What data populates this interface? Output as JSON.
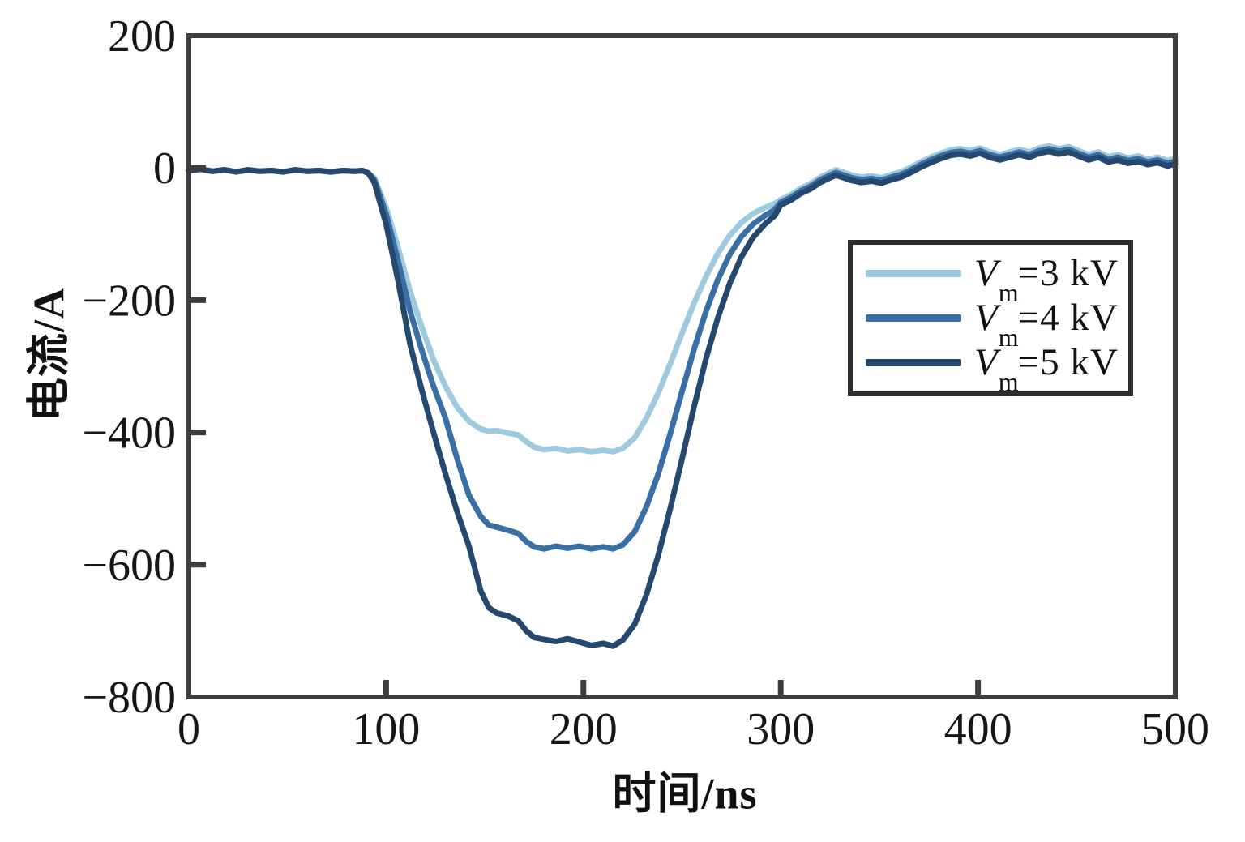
{
  "page": {
    "background": "#ffffff"
  },
  "chart_data": {
    "type": "line",
    "title": "",
    "xlabel": "时间/ns",
    "ylabel": "电流/A",
    "xlim": [
      0,
      500
    ],
    "ylim": [
      -800,
      200
    ],
    "grid": false,
    "legend_position": "right-middle-inside",
    "axis_color": "#3d3d3d",
    "tick_label_color": "#161616",
    "x_ticks": [
      {
        "v": 0,
        "label": "0"
      },
      {
        "v": 100,
        "label": "100"
      },
      {
        "v": 200,
        "label": "200"
      },
      {
        "v": 300,
        "label": "300"
      },
      {
        "v": 400,
        "label": "400"
      },
      {
        "v": 500,
        "label": "500"
      }
    ],
    "y_ticks": [
      {
        "v": 200,
        "label": "200"
      },
      {
        "v": 0,
        "label": "0"
      },
      {
        "v": -200,
        "label": "−200"
      },
      {
        "v": -400,
        "label": "−400"
      },
      {
        "v": -600,
        "label": "−600"
      },
      {
        "v": -800,
        "label": "−800"
      }
    ],
    "series": [
      {
        "name": "Vm=3 kV",
        "label_suffix": "=3 kV",
        "color": "#9ecadf",
        "peak_current_A": -430,
        "points": [
          [
            0,
            -4
          ],
          [
            6,
            -2
          ],
          [
            12,
            -5
          ],
          [
            18,
            -3
          ],
          [
            24,
            -6
          ],
          [
            30,
            -3
          ],
          [
            36,
            -5
          ],
          [
            42,
            -4
          ],
          [
            48,
            -6
          ],
          [
            54,
            -3
          ],
          [
            60,
            -5
          ],
          [
            66,
            -4
          ],
          [
            72,
            -6
          ],
          [
            78,
            -4
          ],
          [
            84,
            -5
          ],
          [
            88,
            -4
          ],
          [
            91,
            -8
          ],
          [
            94,
            -15
          ],
          [
            100,
            -60
          ],
          [
            106,
            -120
          ],
          [
            112,
            -185
          ],
          [
            118,
            -240
          ],
          [
            124,
            -290
          ],
          [
            130,
            -330
          ],
          [
            136,
            -362
          ],
          [
            142,
            -383
          ],
          [
            148,
            -395
          ],
          [
            152,
            -398
          ],
          [
            156,
            -397
          ],
          [
            162,
            -401
          ],
          [
            167,
            -404
          ],
          [
            171,
            -414
          ],
          [
            175,
            -422
          ],
          [
            180,
            -426
          ],
          [
            186,
            -424
          ],
          [
            192,
            -428
          ],
          [
            198,
            -426
          ],
          [
            204,
            -429
          ],
          [
            210,
            -427
          ],
          [
            215,
            -429
          ],
          [
            220,
            -424
          ],
          [
            226,
            -408
          ],
          [
            232,
            -378
          ],
          [
            238,
            -340
          ],
          [
            244,
            -296
          ],
          [
            250,
            -250
          ],
          [
            256,
            -205
          ],
          [
            262,
            -165
          ],
          [
            268,
            -130
          ],
          [
            274,
            -103
          ],
          [
            280,
            -83
          ],
          [
            286,
            -69
          ],
          [
            292,
            -60
          ],
          [
            297,
            -54
          ],
          [
            300,
            -48
          ],
          [
            305,
            -41
          ],
          [
            310,
            -31
          ],
          [
            315,
            -24
          ],
          [
            320,
            -14
          ],
          [
            325,
            -7
          ],
          [
            328,
            -3
          ],
          [
            332,
            -7
          ],
          [
            336,
            -11
          ],
          [
            341,
            -14
          ],
          [
            346,
            -12
          ],
          [
            351,
            -15
          ],
          [
            356,
            -10
          ],
          [
            361,
            -6
          ],
          [
            366,
            1
          ],
          [
            371,
            9
          ],
          [
            376,
            16
          ],
          [
            381,
            22
          ],
          [
            386,
            27
          ],
          [
            391,
            29
          ],
          [
            396,
            26
          ],
          [
            401,
            30
          ],
          [
            406,
            24
          ],
          [
            411,
            20
          ],
          [
            416,
            24
          ],
          [
            421,
            28
          ],
          [
            426,
            24
          ],
          [
            431,
            30
          ],
          [
            436,
            33
          ],
          [
            441,
            29
          ],
          [
            446,
            32
          ],
          [
            451,
            26
          ],
          [
            456,
            20
          ],
          [
            461,
            24
          ],
          [
            466,
            17
          ],
          [
            471,
            20
          ],
          [
            476,
            15
          ],
          [
            481,
            18
          ],
          [
            486,
            13
          ],
          [
            491,
            16
          ],
          [
            496,
            11
          ],
          [
            500,
            14
          ]
        ]
      },
      {
        "name": "Vm=4 kV",
        "label_suffix": "=4 kV",
        "color": "#3a6fa5",
        "peak_current_A": -576,
        "points": [
          [
            0,
            -4
          ],
          [
            6,
            -2
          ],
          [
            12,
            -5
          ],
          [
            18,
            -3
          ],
          [
            24,
            -6
          ],
          [
            30,
            -3
          ],
          [
            36,
            -5
          ],
          [
            42,
            -4
          ],
          [
            48,
            -6
          ],
          [
            54,
            -3
          ],
          [
            60,
            -5
          ],
          [
            66,
            -4
          ],
          [
            72,
            -6
          ],
          [
            78,
            -4
          ],
          [
            84,
            -5
          ],
          [
            88,
            -4
          ],
          [
            91,
            -8
          ],
          [
            94,
            -18
          ],
          [
            100,
            -70
          ],
          [
            106,
            -140
          ],
          [
            112,
            -215
          ],
          [
            118,
            -275
          ],
          [
            124,
            -330
          ],
          [
            130,
            -378
          ],
          [
            136,
            -440
          ],
          [
            142,
            -495
          ],
          [
            148,
            -527
          ],
          [
            152,
            -540
          ],
          [
            156,
            -543
          ],
          [
            162,
            -548
          ],
          [
            167,
            -553
          ],
          [
            171,
            -565
          ],
          [
            175,
            -573
          ],
          [
            180,
            -576
          ],
          [
            186,
            -572
          ],
          [
            192,
            -575
          ],
          [
            198,
            -572
          ],
          [
            204,
            -576
          ],
          [
            210,
            -573
          ],
          [
            215,
            -576
          ],
          [
            220,
            -570
          ],
          [
            226,
            -550
          ],
          [
            232,
            -512
          ],
          [
            238,
            -462
          ],
          [
            244,
            -402
          ],
          [
            250,
            -338
          ],
          [
            256,
            -275
          ],
          [
            262,
            -218
          ],
          [
            268,
            -170
          ],
          [
            274,
            -132
          ],
          [
            280,
            -104
          ],
          [
            286,
            -85
          ],
          [
            292,
            -72
          ],
          [
            297,
            -63
          ],
          [
            300,
            -52
          ],
          [
            305,
            -45
          ],
          [
            310,
            -35
          ],
          [
            315,
            -28
          ],
          [
            320,
            -18
          ],
          [
            325,
            -11
          ],
          [
            328,
            -7
          ],
          [
            332,
            -11
          ],
          [
            336,
            -15
          ],
          [
            341,
            -18
          ],
          [
            346,
            -16
          ],
          [
            351,
            -19
          ],
          [
            356,
            -14
          ],
          [
            361,
            -10
          ],
          [
            366,
            -3
          ],
          [
            371,
            5
          ],
          [
            376,
            12
          ],
          [
            381,
            18
          ],
          [
            386,
            23
          ],
          [
            391,
            25
          ],
          [
            396,
            22
          ],
          [
            401,
            26
          ],
          [
            406,
            20
          ],
          [
            411,
            16
          ],
          [
            416,
            20
          ],
          [
            421,
            24
          ],
          [
            426,
            20
          ],
          [
            431,
            26
          ],
          [
            436,
            29
          ],
          [
            441,
            25
          ],
          [
            446,
            28
          ],
          [
            451,
            22
          ],
          [
            456,
            16
          ],
          [
            461,
            20
          ],
          [
            466,
            13
          ],
          [
            471,
            16
          ],
          [
            476,
            11
          ],
          [
            481,
            14
          ],
          [
            486,
            9
          ],
          [
            491,
            12
          ],
          [
            496,
            7
          ],
          [
            500,
            10
          ]
        ]
      },
      {
        "name": "Vm=5 kV",
        "label_suffix": "=5 kV",
        "color": "#25486e",
        "peak_current_A": -723,
        "points": [
          [
            0,
            -4
          ],
          [
            6,
            -2
          ],
          [
            12,
            -5
          ],
          [
            18,
            -3
          ],
          [
            24,
            -6
          ],
          [
            30,
            -3
          ],
          [
            36,
            -5
          ],
          [
            42,
            -4
          ],
          [
            48,
            -6
          ],
          [
            54,
            -3
          ],
          [
            60,
            -5
          ],
          [
            66,
            -4
          ],
          [
            72,
            -6
          ],
          [
            78,
            -4
          ],
          [
            84,
            -5
          ],
          [
            88,
            -4
          ],
          [
            91,
            -8
          ],
          [
            94,
            -22
          ],
          [
            100,
            -85
          ],
          [
            106,
            -170
          ],
          [
            112,
            -265
          ],
          [
            118,
            -335
          ],
          [
            124,
            -400
          ],
          [
            130,
            -462
          ],
          [
            136,
            -520
          ],
          [
            142,
            -572
          ],
          [
            148,
            -640
          ],
          [
            152,
            -665
          ],
          [
            156,
            -673
          ],
          [
            162,
            -678
          ],
          [
            167,
            -685
          ],
          [
            171,
            -700
          ],
          [
            175,
            -710
          ],
          [
            180,
            -713
          ],
          [
            186,
            -716
          ],
          [
            192,
            -712
          ],
          [
            198,
            -717
          ],
          [
            204,
            -722
          ],
          [
            210,
            -719
          ],
          [
            215,
            -723
          ],
          [
            220,
            -714
          ],
          [
            226,
            -690
          ],
          [
            232,
            -645
          ],
          [
            238,
            -585
          ],
          [
            244,
            -515
          ],
          [
            250,
            -440
          ],
          [
            256,
            -362
          ],
          [
            262,
            -290
          ],
          [
            268,
            -228
          ],
          [
            274,
            -176
          ],
          [
            280,
            -135
          ],
          [
            286,
            -105
          ],
          [
            292,
            -85
          ],
          [
            297,
            -72
          ],
          [
            300,
            -56
          ],
          [
            305,
            -49
          ],
          [
            310,
            -39
          ],
          [
            315,
            -32
          ],
          [
            320,
            -22
          ],
          [
            325,
            -15
          ],
          [
            328,
            -11
          ],
          [
            332,
            -15
          ],
          [
            336,
            -19
          ],
          [
            341,
            -22
          ],
          [
            346,
            -20
          ],
          [
            351,
            -23
          ],
          [
            356,
            -18
          ],
          [
            361,
            -14
          ],
          [
            366,
            -7
          ],
          [
            371,
            1
          ],
          [
            376,
            8
          ],
          [
            381,
            14
          ],
          [
            386,
            19
          ],
          [
            391,
            21
          ],
          [
            396,
            18
          ],
          [
            401,
            22
          ],
          [
            406,
            16
          ],
          [
            411,
            12
          ],
          [
            416,
            16
          ],
          [
            421,
            20
          ],
          [
            426,
            16
          ],
          [
            431,
            22
          ],
          [
            436,
            25
          ],
          [
            441,
            21
          ],
          [
            446,
            24
          ],
          [
            451,
            18
          ],
          [
            456,
            12
          ],
          [
            461,
            16
          ],
          [
            466,
            9
          ],
          [
            471,
            12
          ],
          [
            476,
            7
          ],
          [
            481,
            10
          ],
          [
            486,
            5
          ],
          [
            491,
            8
          ],
          [
            496,
            3
          ],
          [
            500,
            6
          ]
        ]
      }
    ]
  },
  "legend": {
    "var_symbol": "V",
    "var_sub": "m",
    "items": [
      {
        "suffix": "=3 kV"
      },
      {
        "suffix": "=4 kV"
      },
      {
        "suffix": "=5 kV"
      }
    ]
  }
}
